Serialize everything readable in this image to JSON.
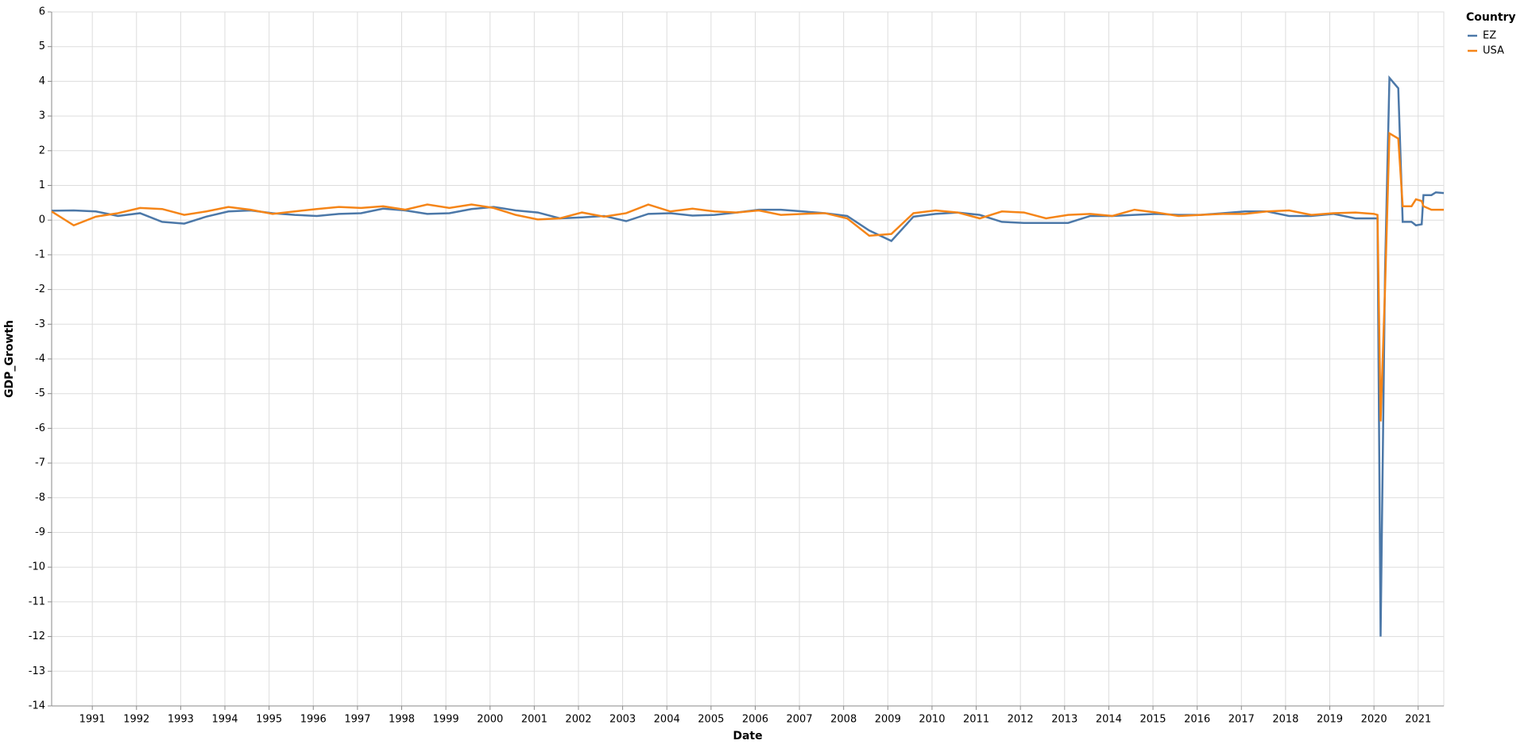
{
  "chart_data": {
    "type": "line",
    "x_label": "Date",
    "y_label": "GDP_Growth",
    "legend_title": "Country",
    "legend_position": "right",
    "grid": true,
    "x": [
      1990.08,
      1990.58,
      1991.08,
      1991.58,
      1992.08,
      1992.58,
      1993.08,
      1993.58,
      1994.08,
      1994.58,
      1995.08,
      1995.58,
      1996.08,
      1996.58,
      1997.08,
      1997.58,
      1998.08,
      1998.58,
      1999.08,
      1999.58,
      2000.08,
      2000.58,
      2001.08,
      2001.58,
      2002.08,
      2002.58,
      2003.08,
      2003.58,
      2004.08,
      2004.58,
      2005.08,
      2005.58,
      2006.08,
      2006.58,
      2007.08,
      2007.58,
      2008.08,
      2008.58,
      2009.08,
      2009.58,
      2010.08,
      2010.58,
      2011.08,
      2011.58,
      2012.08,
      2012.58,
      2013.08,
      2013.58,
      2014.08,
      2014.58,
      2015.08,
      2015.58,
      2016.08,
      2016.58,
      2017.08,
      2017.58,
      2018.08,
      2018.58,
      2019.08,
      2019.58,
      2020,
      2020.08,
      2020.15,
      2020.25,
      2020.35,
      2020.55,
      2020.65,
      2020.85,
      2020.95,
      2021.08,
      2021.12,
      2021.3,
      2021.4,
      2021.58
    ],
    "series": [
      {
        "name": "EZ",
        "color": "#4c78a8",
        "values": [
          0.27,
          0.28,
          0.25,
          0.12,
          0.2,
          -0.05,
          -0.1,
          0.1,
          0.25,
          0.28,
          0.2,
          0.15,
          0.12,
          0.18,
          0.2,
          0.33,
          0.28,
          0.18,
          0.2,
          0.32,
          0.38,
          0.28,
          0.22,
          0.05,
          0.08,
          0.12,
          -0.03,
          0.18,
          0.2,
          0.13,
          0.15,
          0.22,
          0.3,
          0.3,
          0.25,
          0.2,
          0.12,
          -0.3,
          -0.6,
          0.1,
          0.18,
          0.22,
          0.15,
          -0.05,
          -0.08,
          -0.08,
          -0.08,
          0.12,
          0.12,
          0.15,
          0.18,
          0.15,
          0.15,
          0.2,
          0.25,
          0.25,
          0.12,
          0.12,
          0.18,
          0.05,
          0.05,
          0.05,
          -12,
          -1.5,
          4.1,
          3.8,
          -0.05,
          -0.05,
          -0.15,
          -0.12,
          0.72,
          0.72,
          0.8,
          0.78
        ]
      },
      {
        "name": "USA",
        "color": "#f58518",
        "values": [
          0.25,
          -0.15,
          0.1,
          0.2,
          0.35,
          0.32,
          0.15,
          0.25,
          0.38,
          0.3,
          0.18,
          0.25,
          0.32,
          0.38,
          0.35,
          0.4,
          0.3,
          0.45,
          0.35,
          0.45,
          0.35,
          0.15,
          0.02,
          0.05,
          0.22,
          0.1,
          0.2,
          0.45,
          0.25,
          0.33,
          0.25,
          0.22,
          0.28,
          0.15,
          0.18,
          0.2,
          0.05,
          -0.45,
          -0.4,
          0.2,
          0.28,
          0.22,
          0.05,
          0.25,
          0.22,
          0.05,
          0.15,
          0.18,
          0.12,
          0.3,
          0.22,
          0.12,
          0.15,
          0.18,
          0.18,
          0.25,
          0.28,
          0.15,
          0.2,
          0.22,
          0.18,
          0.15,
          -5.8,
          -2,
          2.5,
          2.35,
          0.4,
          0.4,
          0.6,
          0.55,
          0.4,
          0.3,
          0.3,
          0.3
        ]
      }
    ],
    "xlim": [
      1990.08,
      2021.58
    ],
    "xticks": [
      1991,
      1992,
      1993,
      1994,
      1995,
      1996,
      1997,
      1998,
      1999,
      2000,
      2001,
      2002,
      2003,
      2004,
      2005,
      2006,
      2007,
      2008,
      2009,
      2010,
      2011,
      2012,
      2013,
      2014,
      2015,
      2016,
      2017,
      2018,
      2019,
      2020,
      2021
    ],
    "ylim": [
      -14,
      6
    ],
    "yticks": [
      -14,
      -13,
      -12,
      -11,
      -10,
      -9,
      -8,
      -7,
      -6,
      -5,
      -4,
      -3,
      -2,
      -1,
      0,
      1,
      2,
      3,
      4,
      5,
      6
    ]
  }
}
